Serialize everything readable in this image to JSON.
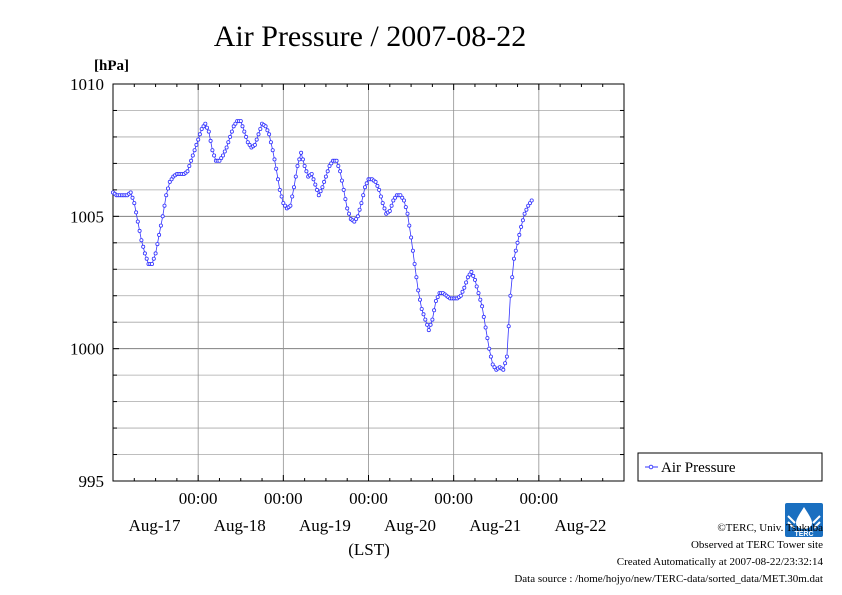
{
  "chart_data": {
    "type": "line",
    "title": "Air Pressure / 2007-08-22",
    "unit_label": "[hPa]",
    "xlabel": "(LST)",
    "ylim": [
      995,
      1010
    ],
    "y_ticks": [
      "1010",
      "1005",
      "1000",
      "995"
    ],
    "x_time_label": "00:00",
    "x_day_labels": [
      "Aug-17",
      "Aug-18",
      "Aug-19",
      "Aug-20",
      "Aug-21",
      "Aug-22"
    ],
    "grid": true,
    "legend_position": "right",
    "series": [
      {
        "name": "Air Pressure",
        "color": "#3333ff",
        "x_hours": [
          0,
          1,
          2,
          3,
          4,
          5,
          6,
          7,
          8,
          9,
          10,
          11,
          12,
          13,
          14,
          15,
          16,
          17,
          18,
          19,
          20,
          21,
          22,
          23,
          24,
          25,
          26,
          27,
          28,
          29,
          30,
          31,
          32,
          33,
          34,
          35,
          36,
          37,
          38,
          39,
          40,
          41,
          42,
          43,
          44,
          45,
          46,
          47,
          48,
          49,
          50,
          51,
          52,
          53,
          54,
          55,
          56,
          57,
          58,
          59,
          60,
          61,
          62,
          63,
          64,
          65,
          66,
          67,
          68,
          69,
          70,
          71,
          72,
          73,
          74,
          75,
          76,
          77,
          78,
          79,
          80,
          81,
          82,
          83,
          84,
          85,
          86,
          87,
          88,
          89,
          90,
          91,
          92,
          93,
          94,
          95,
          96,
          97,
          98,
          99,
          100,
          101,
          102,
          103,
          104,
          105,
          106,
          107,
          108,
          109,
          110,
          111,
          112,
          113,
          114,
          115,
          116,
          117,
          118,
          119,
          120,
          121,
          122,
          123,
          124,
          125,
          126,
          127,
          128,
          129,
          130,
          131,
          132,
          133,
          134,
          135,
          136,
          137,
          138,
          139,
          140,
          141,
          142,
          143
        ],
        "values": [
          1005.9,
          1005.8,
          1005.8,
          1005.8,
          1005.8,
          1005.9,
          1005.5,
          1004.8,
          1004.1,
          1003.6,
          1003.2,
          1003.2,
          1003.6,
          1004.3,
          1005.0,
          1005.8,
          1006.3,
          1006.5,
          1006.6,
          1006.6,
          1006.6,
          1006.7,
          1007.1,
          1007.5,
          1007.9,
          1008.3,
          1008.5,
          1008.2,
          1007.5,
          1007.1,
          1007.1,
          1007.3,
          1007.6,
          1008.0,
          1008.4,
          1008.6,
          1008.6,
          1008.2,
          1007.8,
          1007.6,
          1007.7,
          1008.1,
          1008.5,
          1008.4,
          1008.1,
          1007.5,
          1006.8,
          1006.0,
          1005.5,
          1005.3,
          1005.4,
          1006.1,
          1006.9,
          1007.4,
          1006.9,
          1006.5,
          1006.6,
          1006.2,
          1005.8,
          1006.1,
          1006.5,
          1006.9,
          1007.1,
          1007.1,
          1006.7,
          1006.0,
          1005.3,
          1004.9,
          1004.8,
          1005.0,
          1005.5,
          1006.1,
          1006.4,
          1006.4,
          1006.3,
          1006.0,
          1005.5,
          1005.1,
          1005.2,
          1005.6,
          1005.8,
          1005.8,
          1005.6,
          1005.1,
          1004.2,
          1003.2,
          1002.2,
          1001.5,
          1001.1,
          1000.7,
          1001.1,
          1001.8,
          1002.1,
          1002.1,
          1002.0,
          1001.9,
          1001.9,
          1001.9,
          1002.0,
          1002.3,
          1002.7,
          1002.9,
          1002.6,
          1002.1,
          1001.6,
          1000.8,
          1000.0,
          999.4,
          999.2,
          999.3,
          999.2,
          999.7,
          1002.0,
          1003.4,
          1004.0,
          1004.6,
          1005.1,
          1005.4,
          1005.6,
          null,
          null,
          null,
          null,
          null,
          null,
          null,
          null,
          null,
          null,
          null,
          null,
          null,
          null,
          null,
          null,
          null,
          null,
          null,
          null,
          null,
          null,
          null,
          null,
          null
        ]
      }
    ]
  },
  "footer": {
    "copyright": "©TERC, Univ. Tsukuba",
    "observed": "Observed at TERC Tower site",
    "created": "Created Automatically at 2007-08-22/23:32:14",
    "source": "Data source : /home/hojyo/new/TERC-data/sorted_data/MET.30m.dat"
  },
  "logo": {
    "text": "TERC",
    "color": "#1a6fc0"
  }
}
